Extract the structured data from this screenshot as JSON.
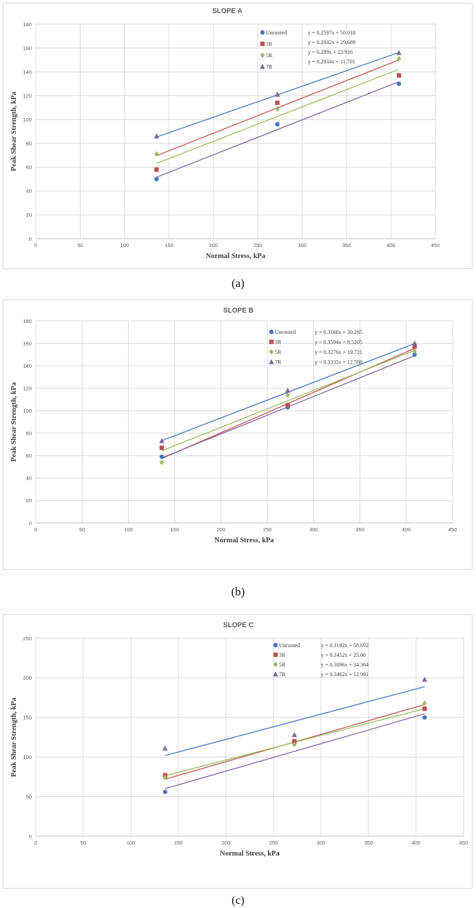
{
  "chart_data": [
    {
      "type": "scatter",
      "title": "SLOPE A",
      "caption": "(a)",
      "xlabel": "Normal Stress, kPa",
      "ylabel": "Peak Shear Strength, kPa",
      "xlim": [
        0,
        450
      ],
      "ylim": [
        0,
        180
      ],
      "xticks": [
        0,
        50,
        100,
        150,
        200,
        250,
        300,
        350,
        400,
        450
      ],
      "yticks": [
        0,
        20,
        40,
        60,
        80,
        100,
        120,
        140,
        160,
        180
      ],
      "grid": true,
      "legend_position": "top-right",
      "x": [
        136,
        272,
        409
      ],
      "series": [
        {
          "name": "Unrooted",
          "marker": "circle",
          "color": "#4472c4",
          "values": [
            50,
            96,
            130
          ],
          "trendline": {
            "slope": 0.2597,
            "intercept": 50.018,
            "equation": "y = 0.2597x + 50.018"
          }
        },
        {
          "name": "3R",
          "marker": "square",
          "color": "#c0504d",
          "values": [
            58,
            114,
            137
          ],
          "trendline": {
            "slope": 0.2942,
            "intercept": 29.689,
            "equation": "y = 0.2942x + 29.689"
          }
        },
        {
          "name": "5R",
          "marker": "diamond",
          "color": "#9bbb59",
          "values": [
            71,
            109,
            151
          ],
          "trendline": {
            "slope": 0.289,
            "intercept": 23.916,
            "equation": "y = 0.289x + 23.916"
          }
        },
        {
          "name": "7R",
          "marker": "triangle",
          "color": "#8064a2",
          "values": [
            86,
            121,
            156
          ],
          "trendline": {
            "slope": 0.2934,
            "intercept": 11.701,
            "equation": "y = 0.2934x + 11.701"
          }
        }
      ]
    },
    {
      "type": "scatter",
      "title": "SLOPE B",
      "caption": "(b)",
      "xlabel": "Normal Stress, kPa",
      "ylabel": "Peak Shear Strength, kPa",
      "xlim": [
        0,
        450
      ],
      "ylim": [
        0,
        180
      ],
      "xticks": [
        0,
        50,
        100,
        150,
        200,
        250,
        300,
        350,
        400,
        450
      ],
      "yticks": [
        0,
        20,
        40,
        60,
        80,
        100,
        120,
        140,
        160,
        180
      ],
      "grid": true,
      "legend_position": "top-right",
      "x": [
        136,
        272,
        409
      ],
      "series": [
        {
          "name": "Unrooted",
          "marker": "circle",
          "color": "#4472c4",
          "values": [
            59,
            103,
            150
          ],
          "trendline": {
            "slope": 0.3166,
            "intercept": 30.265,
            "equation": "y = 0.3166x + 30.265"
          }
        },
        {
          "name": "3R",
          "marker": "square",
          "color": "#c0504d",
          "values": [
            67,
            105,
            157
          ],
          "trendline": {
            "slope": 0.3594,
            "intercept": 8.5205,
            "equation": "y = 0.3594x + 8.5205"
          }
        },
        {
          "name": "5R",
          "marker": "diamond",
          "color": "#9bbb59",
          "values": [
            54,
            114,
            153
          ],
          "trendline": {
            "slope": 0.3276,
            "intercept": 19.721,
            "equation": "y = 0.3276x + 19.721"
          }
        },
        {
          "name": "7R",
          "marker": "triangle",
          "color": "#8064a2",
          "values": [
            73,
            118,
            160
          ],
          "trendline": {
            "slope": 0.3335,
            "intercept": 12.598,
            "equation": "y = 0.3335x + 12.598"
          }
        }
      ]
    },
    {
      "type": "scatter",
      "title": "SLOPE C",
      "caption": "(c)",
      "xlabel": "Normal Stress, kPa",
      "ylabel": "Peak Shear Strength, kPa",
      "xlim": [
        0,
        450
      ],
      "ylim": [
        0,
        250
      ],
      "xticks": [
        0,
        50,
        100,
        150,
        200,
        250,
        300,
        350,
        400,
        450
      ],
      "yticks": [
        0,
        50,
        100,
        150,
        200,
        250
      ],
      "grid": true,
      "legend_position": "top-right",
      "x": [
        136,
        272,
        409
      ],
      "series": [
        {
          "name": "Unrooted",
          "marker": "circle",
          "color": "#4472c4",
          "values": [
            56,
            118,
            150
          ],
          "trendline": {
            "slope": 0.3182,
            "intercept": 58.692,
            "equation": "y = 0.3182x + 58.692"
          }
        },
        {
          "name": "3R",
          "marker": "square",
          "color": "#c0504d",
          "values": [
            77,
            120,
            161
          ],
          "trendline": {
            "slope": 0.3452,
            "intercept": 25.06,
            "equation": "y = 0.3452x + 25.06"
          }
        },
        {
          "name": "5R",
          "marker": "diamond",
          "color": "#9bbb59",
          "values": [
            74,
            116,
            168
          ],
          "trendline": {
            "slope": 0.3096,
            "intercept": 34.364,
            "equation": "y = 0.3096x + 34.364"
          }
        },
        {
          "name": "7R",
          "marker": "triangle",
          "color": "#8064a2",
          "values": [
            111,
            128,
            198
          ],
          "trendline": {
            "slope": 0.3462,
            "intercept": 12.991,
            "equation": "y = 0.3462x + 12.991"
          }
        }
      ]
    }
  ]
}
